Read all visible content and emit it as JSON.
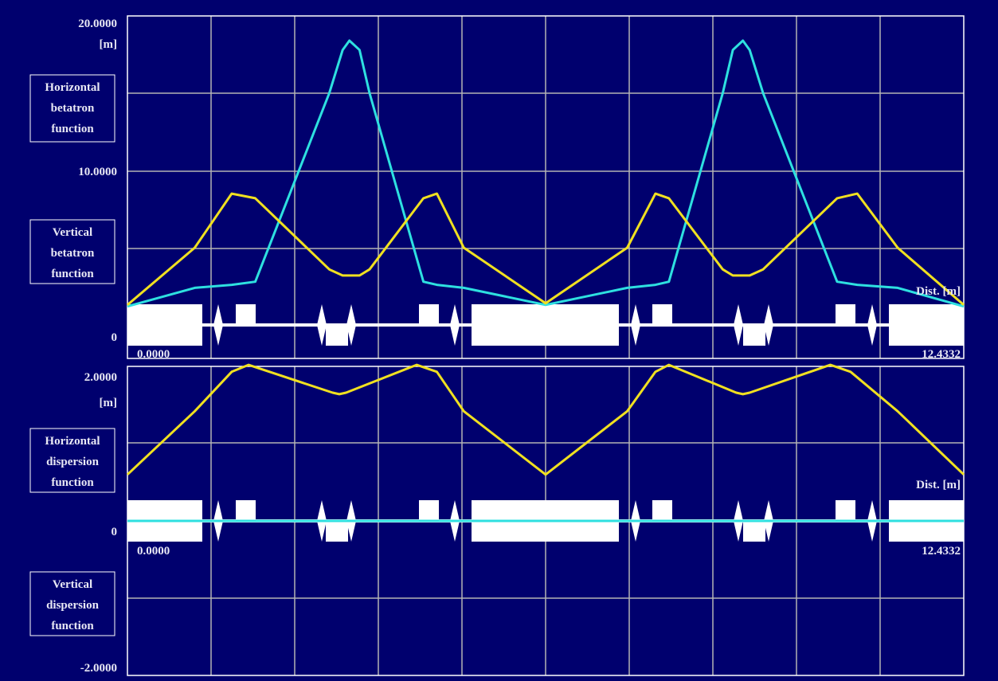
{
  "colors": {
    "background": "#00006e",
    "frame": "#ffffff",
    "grid": "#b4b4b4",
    "horizontal_beta": "#2ee0e0",
    "vertical_beta": "#f0e020",
    "horizontal_dispersion": "#f0e020",
    "vertical_dispersion": "#2ee0e0",
    "elements": "#ffffff"
  },
  "top_panel": {
    "ymax_label": "20.0000",
    "unit_label": "[m]",
    "ymid_label": "10.0000",
    "zero_label": "0",
    "dist_label": "Dist. [m]",
    "s_start_label": "0.0000",
    "s_end_label": "12.4332",
    "legend": [
      {
        "lines": [
          "Horizontal",
          "betatron",
          "function"
        ]
      },
      {
        "lines": [
          "Vertical",
          "betatron",
          "function"
        ]
      }
    ]
  },
  "bottom_panel": {
    "ymax_label": "2.0000",
    "unit_label": "[m]",
    "zero_label": "0",
    "ymin_label": "-2.0000",
    "dist_label": "Dist. [m]",
    "s_start_label": "0.0000",
    "s_end_label": "12.4332",
    "legend": [
      {
        "lines": [
          "Horizontal",
          "dispersion",
          "function"
        ]
      },
      {
        "lines": [
          "Vertical",
          "dispersion",
          "function"
        ]
      }
    ]
  },
  "chart_data": [
    {
      "type": "line",
      "xlim": [
        0,
        12.4332
      ],
      "ylim": [
        0,
        20
      ],
      "grid": true,
      "series": [
        {
          "color": "#2ee0e0",
          "x": [
            0,
            1.0,
            1.55,
            1.9,
            3.0,
            3.2,
            3.3,
            3.45,
            3.6,
            4.4,
            4.6,
            5.0,
            6.2166,
            7.43,
            7.85,
            8.05,
            8.85,
            9.0,
            9.15,
            9.25,
            9.45,
            10.55,
            10.85,
            11.45,
            12.4332
          ],
          "y": [
            1.2,
            2.4,
            2.6,
            2.8,
            15.0,
            17.8,
            18.4,
            17.8,
            15.0,
            2.8,
            2.6,
            2.4,
            1.3,
            2.4,
            2.6,
            2.8,
            15.0,
            17.8,
            18.4,
            17.8,
            15.0,
            2.8,
            2.6,
            2.4,
            1.2
          ]
        },
        {
          "color": "#f0e020",
          "x": [
            0,
            1.0,
            1.55,
            1.9,
            3.0,
            3.2,
            3.3,
            3.45,
            3.6,
            4.4,
            4.6,
            5.0,
            6.2166,
            7.43,
            7.85,
            8.05,
            8.85,
            9.0,
            9.15,
            9.25,
            9.45,
            10.55,
            10.85,
            11.45,
            12.4332
          ],
          "y": [
            1.3,
            5.0,
            8.5,
            8.2,
            3.6,
            3.2,
            3.2,
            3.2,
            3.6,
            8.2,
            8.5,
            5.0,
            1.4,
            5.0,
            8.5,
            8.2,
            3.6,
            3.2,
            3.2,
            3.2,
            3.6,
            8.2,
            8.5,
            5.0,
            1.3
          ]
        }
      ]
    },
    {
      "type": "line",
      "xlim": [
        0,
        12.4332
      ],
      "ylim": [
        -2,
        2
      ],
      "grid": true,
      "series": [
        {
          "color": "#f0e020",
          "x": [
            0,
            1.0,
            1.55,
            1.8,
            3.05,
            3.15,
            3.25,
            4.3,
            4.6,
            5.0,
            6.2166,
            7.43,
            7.85,
            8.05,
            9.05,
            9.15,
            9.25,
            10.45,
            10.75,
            11.45,
            12.4332
          ],
          "y": [
            0.6,
            1.42,
            1.93,
            2.02,
            1.66,
            1.64,
            1.66,
            2.02,
            1.93,
            1.42,
            0.6,
            1.42,
            1.93,
            2.02,
            1.66,
            1.64,
            1.66,
            2.02,
            1.93,
            1.42,
            0.6
          ]
        },
        {
          "color": "#2ee0e0",
          "x": [
            0,
            12.4332
          ],
          "y": [
            0,
            0
          ]
        }
      ]
    }
  ]
}
